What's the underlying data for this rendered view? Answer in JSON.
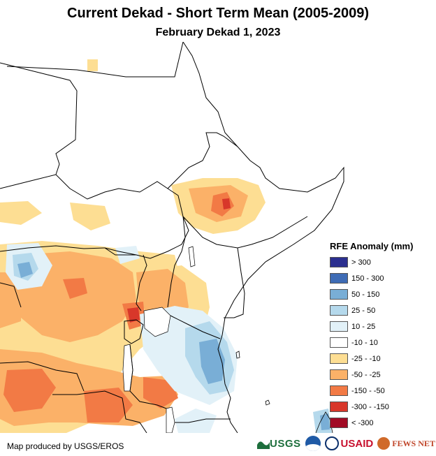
{
  "title": "Current Dekad - Short Term Mean (2005-2009)",
  "subtitle": "February Dekad 1, 2023",
  "legend": {
    "title": "RFE Anomaly (mm)",
    "items": [
      {
        "label": "> 300",
        "color": "#2b2f8f"
      },
      {
        "label": "150 - 300",
        "color": "#3f6cb5"
      },
      {
        "label": "50 - 150",
        "color": "#79aed6"
      },
      {
        "label": "25 - 50",
        "color": "#b5d9ec"
      },
      {
        "label": "10 - 25",
        "color": "#e2f1f8"
      },
      {
        "label": "-10 - 10",
        "color": "#ffffff"
      },
      {
        "label": "-25 - -10",
        "color": "#fdde93"
      },
      {
        "label": "-50 - -25",
        "color": "#fbb168"
      },
      {
        "label": "-150 - -50",
        "color": "#f27a45"
      },
      {
        "label": "-300 - -150",
        "color": "#d8372a"
      },
      {
        "label": "< -300",
        "color": "#a10b25"
      }
    ]
  },
  "credit": "Map produced by USGS/EROS",
  "logos": {
    "usgs": "USGS",
    "usaid_prefix": "US",
    "usaid_suffix": "AID",
    "fews": "FEWS NET"
  },
  "icons": {
    "usgs": "usgs-logo-icon",
    "noaa": "noaa-logo-icon",
    "usaid": "usaid-seal-icon",
    "fews": "fews-net-globe-icon"
  }
}
